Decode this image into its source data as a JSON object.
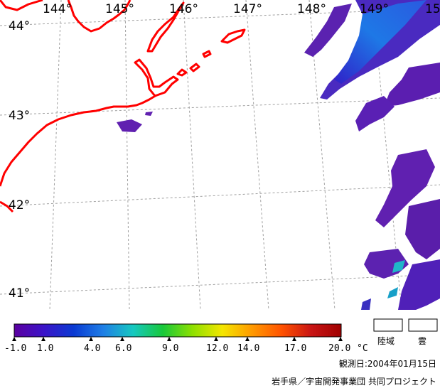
{
  "map": {
    "longitude_labels": [
      "144°",
      "145°",
      "146°",
      "147°",
      "148°",
      "149°",
      "15"
    ],
    "latitude_labels": [
      "44°",
      "43°",
      "42°",
      "41°"
    ],
    "coastline_color": "#ff0000",
    "grid_color": "#999999",
    "background_color": "#ffffff"
  },
  "legend": {
    "tick_labels": [
      "-1.0",
      "1.0",
      "4.0",
      "6.0",
      "9.0",
      "12.0",
      "14.0",
      "17.0",
      "20.0"
    ],
    "unit": "°C",
    "gradient_colors": [
      "#5b00a0",
      "#3b14c8",
      "#0a3ad2",
      "#1f7fe6",
      "#16c8c0",
      "#18c83a",
      "#8ee000",
      "#f4e600",
      "#ff9a00",
      "#ff5200",
      "#c81414",
      "#a00000"
    ],
    "land_label": "陸域",
    "cloud_label": "雲"
  },
  "footer": {
    "observation_date": "観測日:2004年01月15日",
    "credit": "岩手県／宇宙開発事業団 共同プロジェクト"
  }
}
